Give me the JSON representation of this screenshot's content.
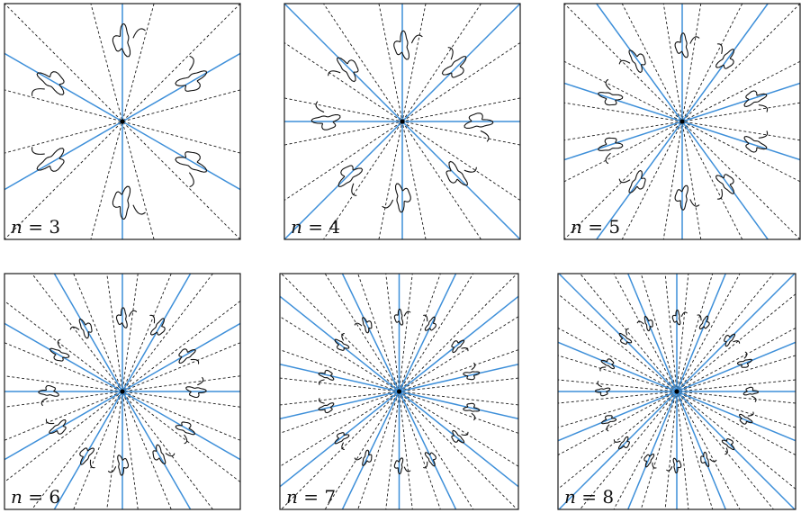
{
  "panels": [
    {
      "n": 3,
      "label_var": "n",
      "label_eq": " = ",
      "label_num": "3"
    },
    {
      "n": 4,
      "label_var": "n",
      "label_eq": " = ",
      "label_num": "4"
    },
    {
      "n": 5,
      "label_var": "n",
      "label_eq": " = ",
      "label_num": "5"
    },
    {
      "n": 6,
      "label_var": "n",
      "label_eq": " = ",
      "label_num": "6"
    },
    {
      "n": 7,
      "label_var": "n",
      "label_eq": " = ",
      "label_num": "7"
    },
    {
      "n": 8,
      "label_var": "n",
      "label_eq": " = ",
      "label_num": "8"
    }
  ],
  "colors": {
    "mirror_line": "#3d8fd9",
    "dashed_line": "#1a1a1a",
    "motif": "#111111"
  },
  "icons": [
    "mirror-line",
    "rotation-line",
    "motif-shape",
    "center-point"
  ]
}
